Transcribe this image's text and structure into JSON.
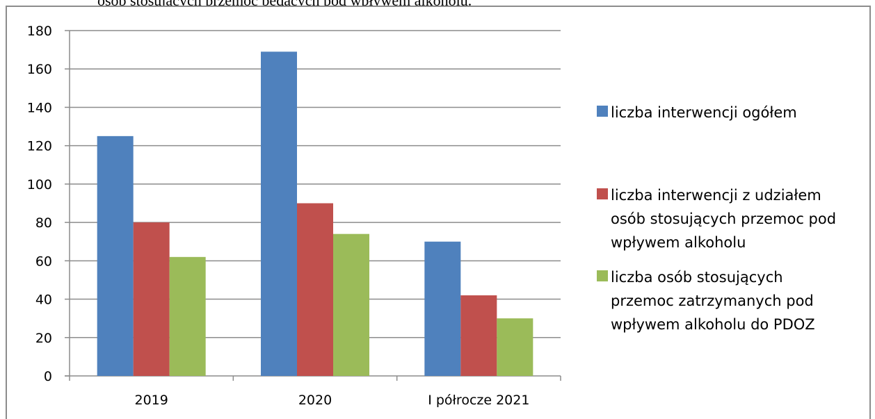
{
  "caption": "osób stosujących przemoc będących pod wpływem alkoholu.",
  "chart_data": {
    "type": "bar",
    "categories": [
      "2019",
      "2020",
      "I półrocze 2021"
    ],
    "series": [
      {
        "name": "liczba interwencji ogółem",
        "values": [
          125,
          169,
          70
        ],
        "color": "#4f81bd"
      },
      {
        "name": "liczba interwencji z udziałem osób stosujących przemoc pod wpływem alkoholu",
        "values": [
          80,
          90,
          42
        ],
        "color": "#c0504d"
      },
      {
        "name": "liczba osób stosujących przemoc zatrzymanych pod wpływem alkoholu do PDOZ",
        "values": [
          62,
          74,
          30
        ],
        "color": "#9bbb59"
      }
    ],
    "ylim": [
      0,
      180
    ],
    "yticks": [
      0,
      20,
      40,
      60,
      80,
      100,
      120,
      140,
      160,
      180
    ],
    "grid": true,
    "legend_position": "right",
    "legend_lines": [
      [
        "liczba interwencji ogółem"
      ],
      [
        "liczba interwencji z udziałem",
        "osób stosujących przemoc pod",
        "wpływem alkoholu"
      ],
      [
        "liczba osób stosujących",
        "przemoc zatrzymanych pod",
        "wpływem alkoholu do PDOZ"
      ]
    ]
  }
}
